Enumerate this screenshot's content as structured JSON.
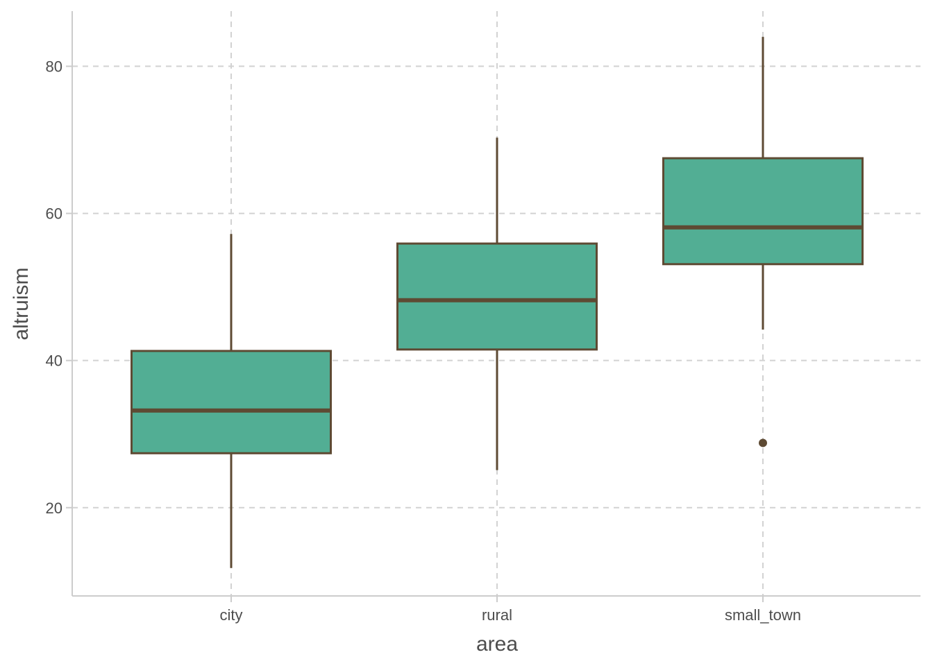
{
  "chart_data": {
    "type": "boxplot",
    "xlabel": "area",
    "ylabel": "altruism",
    "categories": [
      "city",
      "rural",
      "small_town"
    ],
    "boxes": [
      {
        "category": "city",
        "whisker_low": 11.8,
        "q1": 27.4,
        "median": 33.2,
        "q3": 41.3,
        "whisker_high": 57.2,
        "outliers": []
      },
      {
        "category": "rural",
        "whisker_low": 25.1,
        "q1": 41.5,
        "median": 48.2,
        "q3": 55.9,
        "whisker_high": 70.3,
        "outliers": []
      },
      {
        "category": "small_town",
        "whisker_low": 44.2,
        "q1": 53.1,
        "median": 58.1,
        "q3": 67.5,
        "whisker_high": 84.0,
        "outliers": [
          28.8
        ]
      }
    ],
    "yticks": [
      20,
      40,
      60,
      80
    ],
    "ylim": [
      8.0,
      87.5
    ],
    "grid": true,
    "colors": {
      "fill": "#52ae94",
      "stroke": "#5e4a33",
      "grid": "#d2d2d2",
      "axis": "#cccccc"
    }
  }
}
